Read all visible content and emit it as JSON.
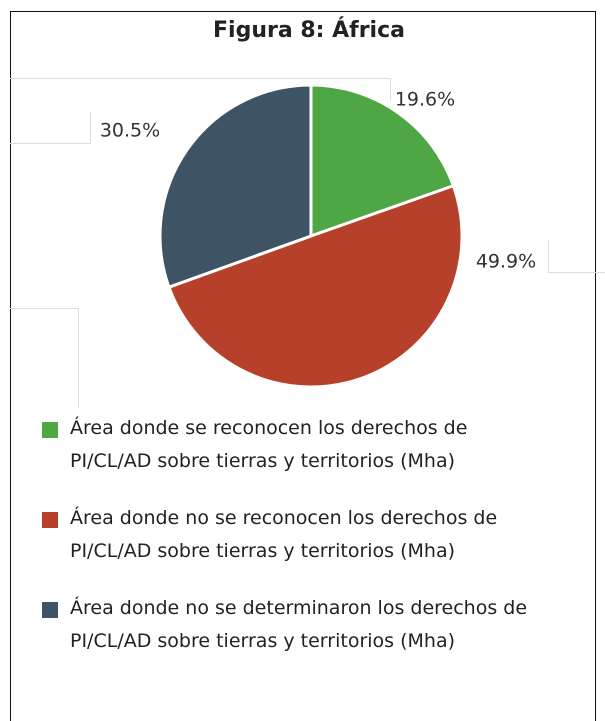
{
  "chart_data": {
    "type": "pie",
    "title": "Figura 8: África",
    "categories": [
      "Área donde se reconocen los derechos de PI/CL/AD sobre tierras y territorios (Mha)",
      "Área donde no se reconocen los derechos de PI/CL/AD sobre tierras y territorios (Mha)",
      "Área donde no se determinaron los derechos de PI/CL/AD sobre tierras y territorios (Mha)"
    ],
    "values": [
      19.6,
      49.9,
      30.5
    ],
    "value_labels": [
      "19.6%",
      "49.9%",
      "30.5%"
    ],
    "colors": [
      "#4fa645",
      "#b6402a",
      "#3e5465"
    ],
    "legend": "bottom"
  }
}
